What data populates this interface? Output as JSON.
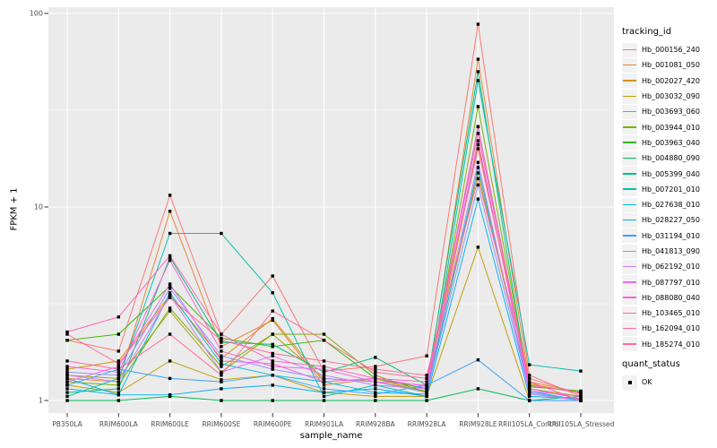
{
  "style": {
    "background": "#FFFFFF",
    "panel_bg": "#EBEBEB",
    "grid_color": "#FFFFFF",
    "axis_text_color": "#4D4D4D",
    "tick_color": "#333333",
    "point_color": "#000000",
    "legend_key_bg": "#F2F2F2"
  },
  "chart_data": {
    "type": "line",
    "title": "",
    "x_label": "sample_name",
    "y_label": "FPKM + 1",
    "y_scale": "log10",
    "y_ticks": [
      1,
      10,
      100
    ],
    "y_minor_ticks": [
      3.1623,
      31.623
    ],
    "ylim": [
      0.95,
      105
    ],
    "grid": true,
    "legend_position": "right",
    "legend_title": "tracking_id",
    "categories": [
      "PB350LA",
      "RRIM600LA",
      "RRIM600LE",
      "RRIM600SE",
      "RRIM600PE",
      "RRIM901LA",
      "RRIM928BA",
      "RRIM928LA",
      "RRIM928LE",
      "RRII105LA_Control",
      "RRII105LA_Stressed"
    ],
    "point_legend": {
      "title": "quant_status",
      "items": [
        {
          "label": "OK",
          "shape": "square",
          "color": "#000000"
        }
      ]
    },
    "series": [
      {
        "name": "Hb_000156_240",
        "color": "#F8766D",
        "values": [
          2.05,
          1.8,
          11.5,
          2.2,
          4.4,
          1.42,
          1.5,
          1.7,
          88,
          1.35,
          1.05
        ]
      },
      {
        "name": "Hb_001081_050",
        "color": "#EA8331",
        "values": [
          1.3,
          1.25,
          9.5,
          1.9,
          2.6,
          1.2,
          1.3,
          1.15,
          58,
          1.25,
          1.1
        ]
      },
      {
        "name": "Hb_002027_420",
        "color": "#D89000",
        "values": [
          1.45,
          1.6,
          3.5,
          1.65,
          2.65,
          1.25,
          1.3,
          1.1,
          21,
          1.22,
          1.09
        ]
      },
      {
        "name": "Hb_003032_090",
        "color": "#C09B00",
        "values": [
          1.2,
          1.1,
          1.6,
          1.28,
          1.35,
          1.1,
          1.05,
          1.05,
          6.2,
          1.0,
          1.0
        ]
      },
      {
        "name": "Hb_003693_060",
        "color": "#A3A500",
        "values": [
          1.35,
          1.3,
          2.9,
          1.4,
          2.2,
          1.3,
          1.25,
          1.12,
          15,
          1.15,
          1.05
        ]
      },
      {
        "name": "Hb_003944_010",
        "color": "#7CAE00",
        "values": [
          1.25,
          1.2,
          3.0,
          1.5,
          2.2,
          2.2,
          1.35,
          1.1,
          33,
          1.2,
          1.1
        ]
      },
      {
        "name": "Hb_003963_040",
        "color": "#39B600",
        "values": [
          2.05,
          2.2,
          3.9,
          2.1,
          1.9,
          2.05,
          1.3,
          1.15,
          26,
          1.18,
          1.12
        ]
      },
      {
        "name": "Hb_004880_090",
        "color": "#00BB4E",
        "values": [
          1.0,
          1.0,
          1.05,
          1.0,
          1.0,
          1.0,
          1.0,
          1.0,
          1.15,
          1.0,
          1.05
        ]
      },
      {
        "name": "Hb_005399_040",
        "color": "#00BF7D",
        "values": [
          1.1,
          1.15,
          5.5,
          2.0,
          1.95,
          1.4,
          1.67,
          1.2,
          50,
          1.1,
          1.0
        ]
      },
      {
        "name": "Hb_007201_010",
        "color": "#00C0AF",
        "values": [
          1.05,
          1.3,
          7.3,
          7.3,
          3.6,
          1.05,
          1.2,
          1.05,
          45,
          1.53,
          1.42
        ]
      },
      {
        "name": "Hb_027638_010",
        "color": "#00BCD8",
        "values": [
          1.15,
          1.07,
          3.6,
          1.55,
          1.35,
          1.25,
          1.1,
          1.08,
          16,
          1.12,
          1.0
        ]
      },
      {
        "name": "Hb_028227_050",
        "color": "#00B0F6",
        "values": [
          1.3,
          1.07,
          1.07,
          1.15,
          1.2,
          1.1,
          1.15,
          1.05,
          11,
          1.05,
          1.02
        ]
      },
      {
        "name": "Hb_031194_010",
        "color": "#35A2FF",
        "values": [
          1.2,
          1.45,
          1.3,
          1.25,
          1.35,
          1.15,
          1.08,
          1.2,
          1.62,
          1.0,
          1.0
        ]
      },
      {
        "name": "Hb_041813_090",
        "color": "#9590FF",
        "values": [
          1.4,
          1.35,
          3.8,
          1.7,
          1.45,
          1.3,
          1.25,
          1.1,
          13,
          1.1,
          1.0
        ]
      },
      {
        "name": "Hb_062192_010",
        "color": "#C77CFF",
        "values": [
          1.35,
          1.25,
          3.5,
          1.4,
          1.7,
          1.35,
          1.2,
          1.15,
          17,
          1.08,
          1.0
        ]
      },
      {
        "name": "Hb_087797_010",
        "color": "#E76BF3",
        "values": [
          1.25,
          1.5,
          4.0,
          1.6,
          1.55,
          1.25,
          1.3,
          1.18,
          22,
          1.12,
          1.05
        ]
      },
      {
        "name": "Hb_088080_040",
        "color": "#FA62DB",
        "values": [
          1.5,
          1.4,
          5.3,
          1.8,
          1.5,
          1.45,
          1.25,
          1.2,
          26,
          1.15,
          1.02
        ]
      },
      {
        "name": "Hb_103465_010",
        "color": "#FF62BC",
        "values": [
          2.26,
          2.7,
          5.6,
          2.2,
          1.6,
          1.5,
          1.3,
          1.25,
          24,
          1.2,
          1.1
        ]
      },
      {
        "name": "Hb_162094_010",
        "color": "#FF6A98",
        "values": [
          1.6,
          1.45,
          2.2,
          1.35,
          2.9,
          2.05,
          1.4,
          1.3,
          20,
          1.25,
          1.0
        ]
      },
      {
        "name": "Hb_185274_010",
        "color": "#FF6C91",
        "values": [
          2.2,
          1.55,
          3.4,
          2.05,
          1.75,
          1.6,
          1.45,
          1.35,
          14,
          1.3,
          1.08
        ]
      }
    ]
  }
}
